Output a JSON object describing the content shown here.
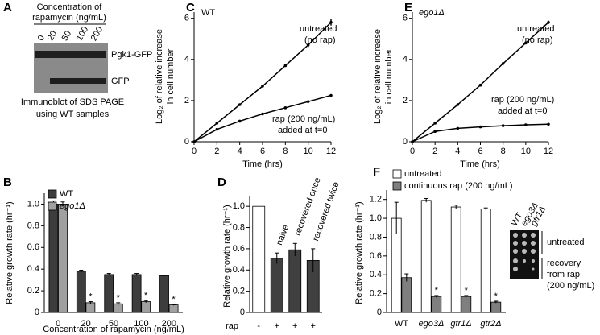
{
  "panel_a": {
    "label": "A",
    "title_lines": [
      "Concentration of",
      "rapamycin (ng/mL)"
    ],
    "lanes": [
      "0",
      "20",
      "50",
      "100",
      "200"
    ],
    "bands": [
      "Pgk1-GFP",
      "GFP"
    ],
    "caption_lines": [
      "Immunoblot of SDS PAGE",
      "using WT samples"
    ]
  },
  "chart_data": [
    {
      "label": "C",
      "type": "line",
      "title": "WT",
      "xlabel": "Time (hrs)",
      "ylabel": [
        "Log₂ of relative increase",
        "in cell number"
      ],
      "annotations": [
        "untreated",
        "(no rap)",
        "rap (200 ng/mL)",
        "added at t=0"
      ],
      "x": [
        0,
        2,
        4,
        6,
        8,
        10,
        12
      ],
      "xlim": [
        0,
        12
      ],
      "xticks": [
        0,
        2,
        4,
        6,
        8,
        10,
        12
      ],
      "ylim": [
        0,
        6.3
      ],
      "yticks": [
        0,
        2,
        4,
        6
      ],
      "series": [
        {
          "color": "#000000",
          "values": [
            0,
            0.9,
            1.8,
            2.7,
            3.7,
            4.7,
            5.8
          ],
          "errors": [
            0,
            0.03,
            0.05,
            0.06,
            0.06,
            0.1,
            0.15
          ]
        },
        {
          "color": "#000000",
          "values": [
            0,
            0.6,
            1.0,
            1.35,
            1.65,
            1.95,
            2.25
          ],
          "errors": [
            0,
            0.03,
            0.03,
            0.04,
            0.04,
            0.04,
            0.05
          ]
        }
      ]
    },
    {
      "label": "E",
      "type": "line",
      "title": "ego1Δ",
      "xlabel": "Time (hrs)",
      "ylabel": [
        "Log₂ of relative increase",
        "in cell number"
      ],
      "annotations": [
        "untreated",
        "(no rap)",
        "rap (200 ng/mL)",
        "added at t=0"
      ],
      "x": [
        0,
        2,
        4,
        6,
        8,
        10,
        12
      ],
      "xlim": [
        0,
        12
      ],
      "xticks": [
        0,
        2,
        4,
        6,
        8,
        10,
        12
      ],
      "ylim": [
        0,
        6.3
      ],
      "yticks": [
        0,
        2,
        4,
        6
      ],
      "series": [
        {
          "color": "#000000",
          "values": [
            0,
            0.9,
            1.8,
            2.75,
            3.8,
            4.8,
            5.8
          ],
          "errors": [
            0,
            0.05,
            0.05,
            0.06,
            0.05,
            0.07,
            0.08
          ]
        },
        {
          "color": "#000000",
          "values": [
            0,
            0.5,
            0.65,
            0.72,
            0.78,
            0.82,
            0.85
          ],
          "errors": [
            0,
            0.04,
            0.04,
            0.04,
            0.04,
            0.04,
            0.05
          ]
        }
      ]
    },
    {
      "label": "B",
      "type": "bar",
      "xlabel": "Concentration of rapamycin (ng/mL)",
      "ylabel": "Relative growth rate (hr⁻¹)",
      "categories": [
        "0",
        "20",
        "50",
        "100",
        "200"
      ],
      "ylim": [
        0,
        1.1
      ],
      "yticks": [
        0,
        0.2,
        0.4,
        0.6,
        0.8,
        {
          "value": 1,
          "label": "1.0"
        }
      ],
      "series": [
        {
          "name": "WT",
          "color": "#3d3d3d",
          "values": [
            1.0,
            0.38,
            0.35,
            0.35,
            0.34
          ],
          "errors": [
            0.03,
            0.01,
            0.01,
            0.01,
            0.005
          ]
        },
        {
          "name": "ego1Δ",
          "color": "#a0a0a0",
          "values": [
            1.0,
            0.09,
            0.08,
            0.1,
            0.07
          ],
          "errors": [
            0.02,
            0.01,
            0.01,
            0.01,
            0.005
          ],
          "significance": [
            null,
            "*",
            "*",
            "*",
            "*"
          ]
        }
      ]
    },
    {
      "label": "D",
      "type": "bar",
      "ylabel": "Relative growth rate (hr⁻¹)",
      "categories": [
        null,
        "naive",
        "recovered once",
        "recovered twice"
      ],
      "ylim": [
        0,
        1.1
      ],
      "yticks": [
        0,
        0.2,
        0.4,
        0.6,
        0.8,
        {
          "value": 1,
          "label": "1.0"
        }
      ],
      "rap_row": {
        "label": "rap",
        "values": [
          "-",
          "+",
          "+",
          "+"
        ]
      },
      "series": [
        {
          "colors": [
            "#ffffff",
            "#404040",
            "#404040",
            "#404040"
          ],
          "values": [
            1.0,
            0.51,
            0.59,
            0.49
          ],
          "errors": [
            0,
            0.05,
            0.06,
            0.11
          ]
        }
      ]
    },
    {
      "label": "F",
      "type": "bar",
      "ylabel": "Relative growth rate (hr⁻¹)",
      "categories": [
        "WT",
        "ego3Δ",
        "gtr1Δ",
        "gtr2Δ"
      ],
      "ylim": [
        0,
        1.3
      ],
      "yticks": [
        0,
        0.2,
        0.4,
        0.6,
        0.8,
        {
          "value": 1,
          "label": "1.0"
        },
        1.2
      ],
      "inset": {
        "columns": [
          "WT",
          "ego3Δ",
          "gtr1Δ"
        ],
        "rows": [
          "untreated",
          "recovery",
          "from rap",
          "(200 ng/mL)"
        ]
      },
      "series": [
        {
          "name": "untreated",
          "color": "#ffffff",
          "values": [
            1.0,
            1.19,
            1.12,
            1.1
          ],
          "errors": [
            0.17,
            0.02,
            0.02,
            0.01
          ]
        },
        {
          "name": "continuous rap (200 ng/mL)",
          "color": "#7f7f7f",
          "values": [
            0.37,
            0.17,
            0.17,
            0.11
          ],
          "errors": [
            0.04,
            0.01,
            0.01,
            0.01
          ],
          "significance": [
            null,
            "*",
            "*",
            "*"
          ]
        }
      ]
    }
  ]
}
